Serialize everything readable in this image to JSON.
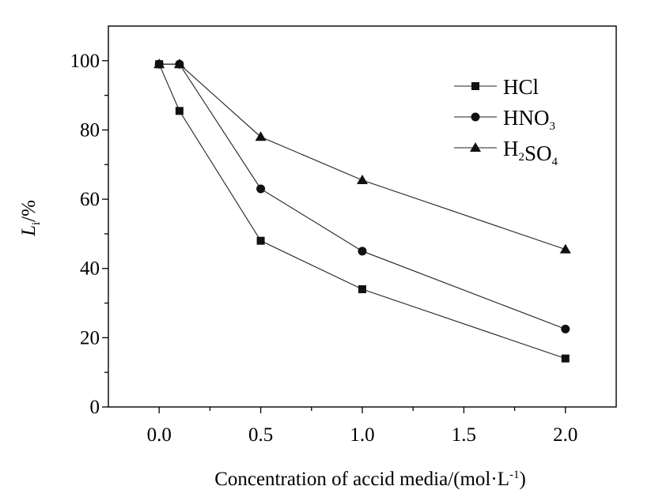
{
  "chart_data": {
    "type": "line",
    "xlabel": "Concentration of accid media/(mol·L",
    "xlabel_sup": "-1",
    "xlabel_end": ")",
    "ylabel_main": "L",
    "ylabel_sub": "i",
    "ylabel_unit": "/%",
    "xlim": [
      -0.25,
      2.25
    ],
    "ylim": [
      0,
      110
    ],
    "xticks": [
      0.0,
      0.5,
      1.0,
      1.5,
      2.0
    ],
    "xtick_labels": [
      "0.0",
      "0.5",
      "1.0",
      "1.5",
      "2.0"
    ],
    "yticks": [
      0,
      20,
      40,
      60,
      80,
      100
    ],
    "ytick_labels": [
      "0",
      "20",
      "40",
      "60",
      "80",
      "100"
    ],
    "legend_position": "top-right",
    "series": [
      {
        "name": "HCl",
        "name_parts": [
          {
            "t": "HCl"
          }
        ],
        "marker": "square",
        "x": [
          0.0,
          0.1,
          0.5,
          1.0,
          2.0
        ],
        "y": [
          99,
          85.5,
          48,
          34,
          14
        ]
      },
      {
        "name": "HNO3",
        "name_parts": [
          {
            "t": "HNO"
          },
          {
            "t": "3",
            "sub": true
          }
        ],
        "marker": "circle",
        "x": [
          0.0,
          0.1,
          0.5,
          1.0,
          2.0
        ],
        "y": [
          99,
          99,
          63,
          45,
          22.5
        ]
      },
      {
        "name": "H2SO4",
        "name_parts": [
          {
            "t": "H"
          },
          {
            "t": "2",
            "sub": true
          },
          {
            "t": "SO"
          },
          {
            "t": "4",
            "sub": true
          }
        ],
        "marker": "triangle",
        "x": [
          0.0,
          0.1,
          0.5,
          1.0,
          2.0
        ],
        "y": [
          99,
          99,
          78,
          65.5,
          45.5
        ]
      }
    ]
  }
}
